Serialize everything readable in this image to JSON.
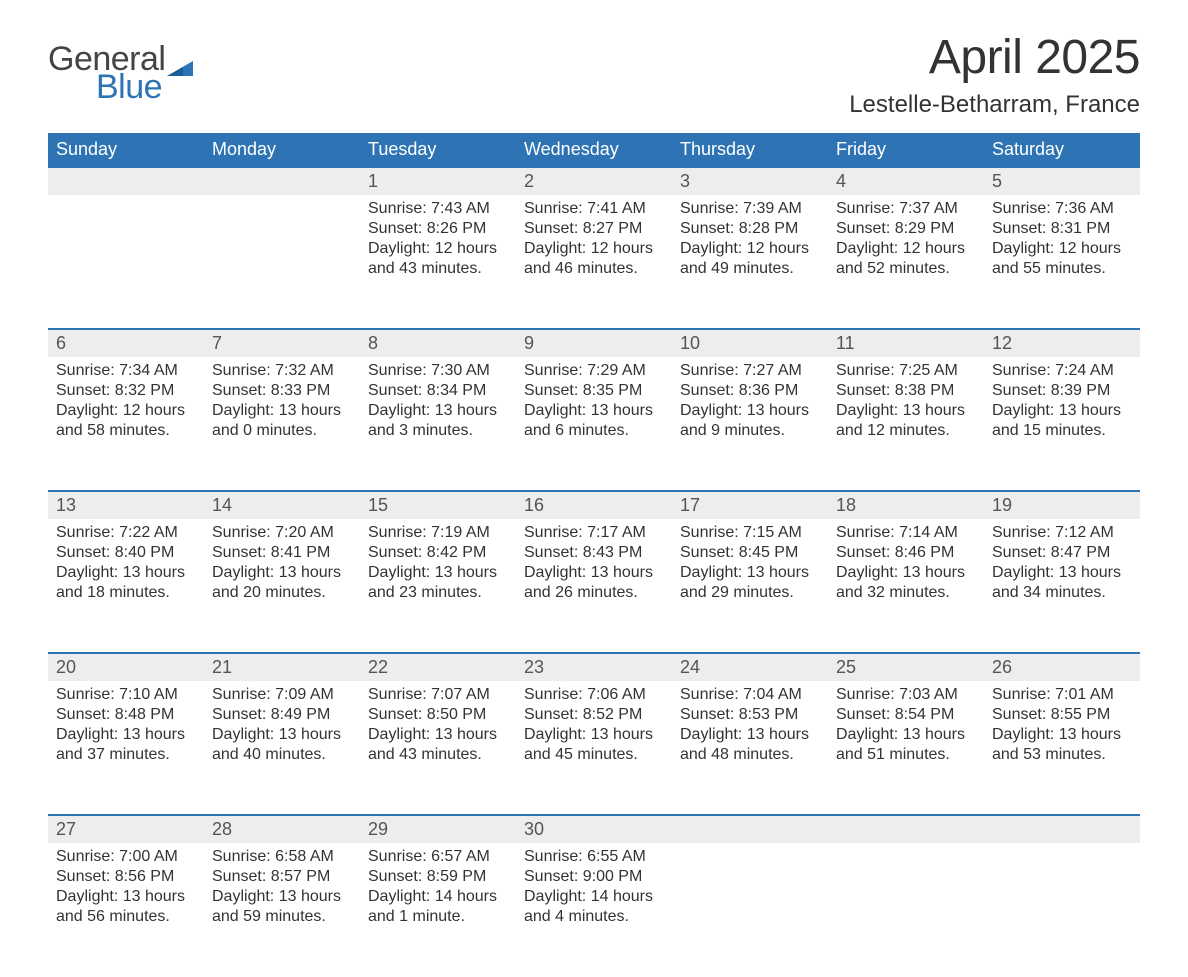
{
  "logo": {
    "text_top": "General",
    "text_bottom": "Blue",
    "icon_color": "#2e74b5"
  },
  "title": "April 2025",
  "location": "Lestelle-Betharram, France",
  "colors": {
    "header_bg": "#2e74b5",
    "header_text": "#ffffff",
    "daynum_bg": "#ededed",
    "daynum_border": "#2e74b5",
    "body_text": "#333333",
    "page_bg": "#ffffff"
  },
  "weekdays": [
    "Sunday",
    "Monday",
    "Tuesday",
    "Wednesday",
    "Thursday",
    "Friday",
    "Saturday"
  ],
  "labels": {
    "sunrise": "Sunrise:",
    "sunset": "Sunset:",
    "daylight": "Daylight:"
  },
  "weeks": [
    [
      null,
      null,
      {
        "n": "1",
        "sunrise": "7:43 AM",
        "sunset": "8:26 PM",
        "daylight": "12 hours and 43 minutes."
      },
      {
        "n": "2",
        "sunrise": "7:41 AM",
        "sunset": "8:27 PM",
        "daylight": "12 hours and 46 minutes."
      },
      {
        "n": "3",
        "sunrise": "7:39 AM",
        "sunset": "8:28 PM",
        "daylight": "12 hours and 49 minutes."
      },
      {
        "n": "4",
        "sunrise": "7:37 AM",
        "sunset": "8:29 PM",
        "daylight": "12 hours and 52 minutes."
      },
      {
        "n": "5",
        "sunrise": "7:36 AM",
        "sunset": "8:31 PM",
        "daylight": "12 hours and 55 minutes."
      }
    ],
    [
      {
        "n": "6",
        "sunrise": "7:34 AM",
        "sunset": "8:32 PM",
        "daylight": "12 hours and 58 minutes."
      },
      {
        "n": "7",
        "sunrise": "7:32 AM",
        "sunset": "8:33 PM",
        "daylight": "13 hours and 0 minutes."
      },
      {
        "n": "8",
        "sunrise": "7:30 AM",
        "sunset": "8:34 PM",
        "daylight": "13 hours and 3 minutes."
      },
      {
        "n": "9",
        "sunrise": "7:29 AM",
        "sunset": "8:35 PM",
        "daylight": "13 hours and 6 minutes."
      },
      {
        "n": "10",
        "sunrise": "7:27 AM",
        "sunset": "8:36 PM",
        "daylight": "13 hours and 9 minutes."
      },
      {
        "n": "11",
        "sunrise": "7:25 AM",
        "sunset": "8:38 PM",
        "daylight": "13 hours and 12 minutes."
      },
      {
        "n": "12",
        "sunrise": "7:24 AM",
        "sunset": "8:39 PM",
        "daylight": "13 hours and 15 minutes."
      }
    ],
    [
      {
        "n": "13",
        "sunrise": "7:22 AM",
        "sunset": "8:40 PM",
        "daylight": "13 hours and 18 minutes."
      },
      {
        "n": "14",
        "sunrise": "7:20 AM",
        "sunset": "8:41 PM",
        "daylight": "13 hours and 20 minutes."
      },
      {
        "n": "15",
        "sunrise": "7:19 AM",
        "sunset": "8:42 PM",
        "daylight": "13 hours and 23 minutes."
      },
      {
        "n": "16",
        "sunrise": "7:17 AM",
        "sunset": "8:43 PM",
        "daylight": "13 hours and 26 minutes."
      },
      {
        "n": "17",
        "sunrise": "7:15 AM",
        "sunset": "8:45 PM",
        "daylight": "13 hours and 29 minutes."
      },
      {
        "n": "18",
        "sunrise": "7:14 AM",
        "sunset": "8:46 PM",
        "daylight": "13 hours and 32 minutes."
      },
      {
        "n": "19",
        "sunrise": "7:12 AM",
        "sunset": "8:47 PM",
        "daylight": "13 hours and 34 minutes."
      }
    ],
    [
      {
        "n": "20",
        "sunrise": "7:10 AM",
        "sunset": "8:48 PM",
        "daylight": "13 hours and 37 minutes."
      },
      {
        "n": "21",
        "sunrise": "7:09 AM",
        "sunset": "8:49 PM",
        "daylight": "13 hours and 40 minutes."
      },
      {
        "n": "22",
        "sunrise": "7:07 AM",
        "sunset": "8:50 PM",
        "daylight": "13 hours and 43 minutes."
      },
      {
        "n": "23",
        "sunrise": "7:06 AM",
        "sunset": "8:52 PM",
        "daylight": "13 hours and 45 minutes."
      },
      {
        "n": "24",
        "sunrise": "7:04 AM",
        "sunset": "8:53 PM",
        "daylight": "13 hours and 48 minutes."
      },
      {
        "n": "25",
        "sunrise": "7:03 AM",
        "sunset": "8:54 PM",
        "daylight": "13 hours and 51 minutes."
      },
      {
        "n": "26",
        "sunrise": "7:01 AM",
        "sunset": "8:55 PM",
        "daylight": "13 hours and 53 minutes."
      }
    ],
    [
      {
        "n": "27",
        "sunrise": "7:00 AM",
        "sunset": "8:56 PM",
        "daylight": "13 hours and 56 minutes."
      },
      {
        "n": "28",
        "sunrise": "6:58 AM",
        "sunset": "8:57 PM",
        "daylight": "13 hours and 59 minutes."
      },
      {
        "n": "29",
        "sunrise": "6:57 AM",
        "sunset": "8:59 PM",
        "daylight": "14 hours and 1 minute."
      },
      {
        "n": "30",
        "sunrise": "6:55 AM",
        "sunset": "9:00 PM",
        "daylight": "14 hours and 4 minutes."
      },
      null,
      null,
      null
    ]
  ]
}
